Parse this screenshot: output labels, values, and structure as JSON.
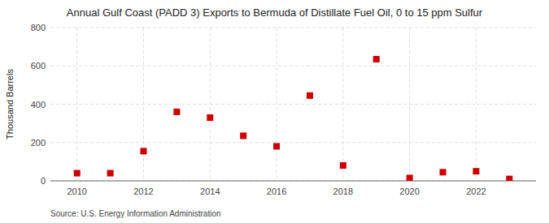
{
  "chart_data": {
    "type": "scatter",
    "title": "Annual Gulf Coast (PADD 3) Exports to Bermuda of Distillate Fuel Oil, 0 to 15 ppm Sulfur",
    "ylabel": "Thousand Barrels",
    "source": "Source: U.S. Energy Information Administration",
    "x": [
      2010,
      2011,
      2012,
      2013,
      2014,
      2015,
      2016,
      2017,
      2018,
      2019,
      2020,
      2021,
      2022,
      2023
    ],
    "values": [
      40,
      40,
      155,
      360,
      330,
      235,
      180,
      445,
      80,
      635,
      15,
      45,
      50,
      10
    ],
    "xlim": [
      2009.2,
      2023.8
    ],
    "ylim": [
      0,
      800
    ],
    "xticks": [
      2010,
      2012,
      2014,
      2016,
      2018,
      2020,
      2022
    ],
    "yticks": [
      0,
      200,
      400,
      600,
      800
    ],
    "color": "#cc0000",
    "marker": "square",
    "grid": true
  }
}
